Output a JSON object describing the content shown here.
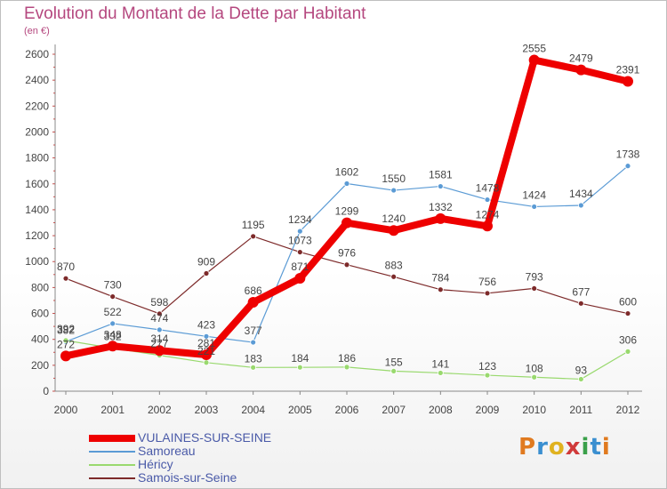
{
  "header": {
    "title": "Evolution du Montant de la Dette par Habitant",
    "subtitle": "(en €)"
  },
  "logo": {
    "text": "Proxiti"
  },
  "chart_data": {
    "type": "line",
    "title": "Evolution du Montant de la Dette par Habitant",
    "subtitle": "(en €)",
    "xlabel": "",
    "ylabel": "",
    "ylim": [
      0,
      2600
    ],
    "yticks": [
      0,
      200,
      400,
      600,
      800,
      1000,
      1200,
      1400,
      1600,
      1800,
      2000,
      2200,
      2400,
      2600
    ],
    "grid": false,
    "legend_position": "bottom",
    "x": [
      "2000",
      "2001",
      "2002",
      "2003",
      "2004",
      "2005",
      "2006",
      "2007",
      "2008",
      "2009",
      "2010",
      "2011",
      "2012"
    ],
    "series": [
      {
        "name": "Samois-sur-Seine",
        "color": "#7d2a2a",
        "values": [
          870,
          730,
          598,
          909,
          1195,
          1073,
          976,
          883,
          784,
          756,
          793,
          677,
          600
        ]
      },
      {
        "name": "Samoreau",
        "color": "#5b9bd5",
        "values": [
          382,
          522,
          474,
          423,
          377,
          1234,
          1602,
          1550,
          1581,
          1478,
          1424,
          1434,
          1738
        ]
      },
      {
        "name": "Héricy",
        "color": "#99d96e",
        "values": [
          392,
          332,
          277,
          221,
          183,
          184,
          186,
          155,
          141,
          123,
          108,
          93,
          306
        ]
      },
      {
        "name": "VULAINES-SUR-SEINE",
        "color": "#ee0000",
        "values": [
          272,
          348,
          314,
          281,
          686,
          871,
          1299,
          1240,
          1332,
          1274,
          2555,
          2479,
          2391
        ]
      }
    ],
    "legend": [
      "VULAINES-SUR-SEINE",
      "Samoreau",
      "Héricy",
      "Samois-sur-Seine"
    ]
  }
}
